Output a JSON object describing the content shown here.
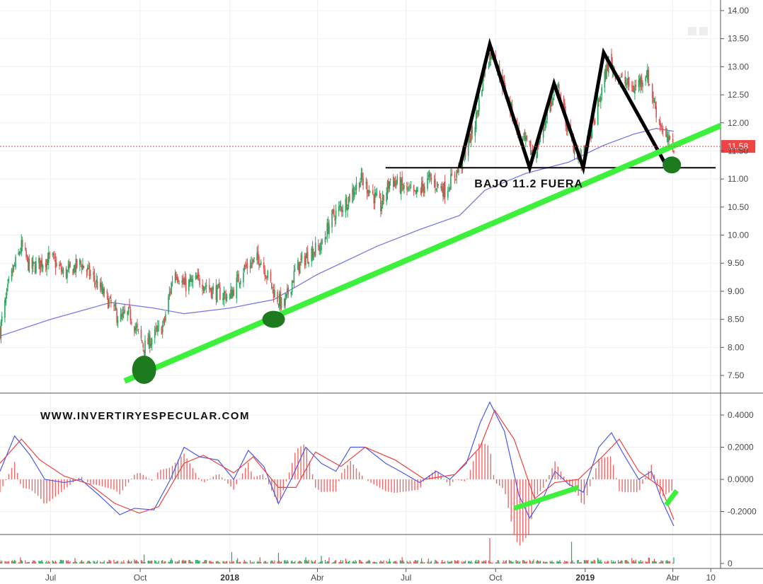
{
  "chart_data": [
    {
      "type": "candlestick",
      "panel": "price",
      "title": "",
      "xlabel": "",
      "ylabel": "",
      "ylim": [
        7.2,
        14.1
      ],
      "y_ticks": [
        "14.00",
        "13.50",
        "13.00",
        "12.50",
        "12.00",
        "11.50",
        "11.00",
        "10.50",
        "10.00",
        "9.50",
        "9.00",
        "8.50",
        "8.00",
        "7.50"
      ],
      "x_ticks": [
        {
          "label": "Jul",
          "date": "2017-07-01",
          "bold": false
        },
        {
          "label": "Oct",
          "date": "2017-10-01",
          "bold": false
        },
        {
          "label": "2018",
          "date": "2018-01-01",
          "bold": true
        },
        {
          "label": "Abr",
          "date": "2018-04-01",
          "bold": false
        },
        {
          "label": "Jul",
          "date": "2018-07-01",
          "bold": false
        },
        {
          "label": "Oct",
          "date": "2018-10-01",
          "bold": false
        },
        {
          "label": "2019",
          "date": "2019-01-01",
          "bold": true
        },
        {
          "label": "Abr",
          "date": "2019-04-01",
          "bold": false
        },
        {
          "label": "10",
          "date": "2019-05-10",
          "bold": false
        }
      ],
      "date_range": [
        "2017-05-10",
        "2019-05-20"
      ],
      "last_price": {
        "label": "11.58",
        "value": 11.58,
        "color": "#ef4444"
      },
      "close_path": [
        [
          "2017-05-10",
          8.3
        ],
        [
          "2017-05-20",
          9.2
        ],
        [
          "2017-06-01",
          9.8
        ],
        [
          "2017-06-10",
          9.4
        ],
        [
          "2017-06-20",
          9.5
        ],
        [
          "2017-07-01",
          9.6
        ],
        [
          "2017-07-15",
          9.3
        ],
        [
          "2017-08-01",
          9.5
        ],
        [
          "2017-08-15",
          9.2
        ],
        [
          "2017-08-30",
          8.8
        ],
        [
          "2017-09-10",
          8.5
        ],
        [
          "2017-09-20",
          8.6
        ],
        [
          "2017-10-05",
          8.0
        ],
        [
          "2017-10-15",
          8.2
        ],
        [
          "2017-10-25",
          8.4
        ],
        [
          "2017-11-05",
          9.4
        ],
        [
          "2017-11-15",
          9.1
        ],
        [
          "2017-12-01",
          9.2
        ],
        [
          "2017-12-15",
          9.0
        ],
        [
          "2018-01-01",
          8.9
        ],
        [
          "2018-01-15",
          9.4
        ],
        [
          "2018-02-01",
          9.6
        ],
        [
          "2018-02-15",
          9.0
        ],
        [
          "2018-02-25",
          8.7
        ],
        [
          "2018-03-10",
          9.4
        ],
        [
          "2018-03-25",
          9.7
        ],
        [
          "2018-04-05",
          9.8
        ],
        [
          "2018-04-15",
          10.3
        ],
        [
          "2018-05-01",
          10.6
        ],
        [
          "2018-05-15",
          11.0
        ],
        [
          "2018-05-25",
          10.8
        ],
        [
          "2018-06-05",
          10.5
        ],
        [
          "2018-06-15",
          11.0
        ],
        [
          "2018-07-01",
          10.8
        ],
        [
          "2018-07-10",
          10.7
        ],
        [
          "2018-07-25",
          11.0
        ],
        [
          "2018-08-10",
          10.8
        ],
        [
          "2018-08-25",
          11.2
        ],
        [
          "2018-09-10",
          12.0
        ],
        [
          "2018-09-20",
          13.0
        ],
        [
          "2018-09-28",
          13.3
        ],
        [
          "2018-10-10",
          12.6
        ],
        [
          "2018-10-25",
          11.8
        ],
        [
          "2018-11-10",
          11.4
        ],
        [
          "2018-11-25",
          12.3
        ],
        [
          "2018-12-05",
          12.6
        ],
        [
          "2018-12-15",
          11.8
        ],
        [
          "2018-12-28",
          11.3
        ],
        [
          "2019-01-10",
          12.0
        ],
        [
          "2019-01-25",
          13.1
        ],
        [
          "2019-02-05",
          12.8
        ],
        [
          "2019-02-20",
          12.6
        ],
        [
          "2019-03-05",
          12.9
        ],
        [
          "2019-03-15",
          12.2
        ],
        [
          "2019-03-25",
          11.7
        ],
        [
          "2019-04-02",
          11.58
        ]
      ],
      "moving_average": [
        [
          "2017-05-10",
          8.2
        ],
        [
          "2017-07-01",
          8.5
        ],
        [
          "2017-09-01",
          8.8
        ],
        [
          "2017-10-15",
          8.7
        ],
        [
          "2017-11-15",
          8.6
        ],
        [
          "2018-01-01",
          8.7
        ],
        [
          "2018-02-15",
          8.85
        ],
        [
          "2018-04-01",
          9.3
        ],
        [
          "2018-06-01",
          9.8
        ],
        [
          "2018-07-15",
          10.1
        ],
        [
          "2018-08-25",
          10.35
        ],
        [
          "2018-09-20",
          10.8
        ],
        [
          "2018-11-01",
          11.1
        ],
        [
          "2018-12-15",
          11.3
        ],
        [
          "2019-01-20",
          11.6
        ],
        [
          "2019-02-20",
          11.8
        ],
        [
          "2019-03-15",
          11.9
        ],
        [
          "2019-04-02",
          11.85
        ]
      ],
      "pattern_line": [
        [
          "2018-08-25",
          11.2
        ],
        [
          "2018-09-25",
          13.4
        ],
        [
          "2018-11-05",
          11.2
        ],
        [
          "2018-11-30",
          12.7
        ],
        [
          "2018-12-30",
          11.2
        ],
        [
          "2019-01-20",
          13.25
        ],
        [
          "2019-03-25",
          11.25
        ]
      ],
      "support_line": {
        "y": 11.2,
        "from": "2018-06-10",
        "to": "2019-05-15"
      },
      "trend_line": {
        "from": [
          "2017-09-15",
          7.4
        ],
        "to": [
          "2019-05-20",
          11.95
        ]
      },
      "touch_points": [
        [
          "2017-10-05",
          7.6
        ],
        [
          "2018-02-15",
          8.5
        ],
        [
          "2019-03-31",
          11.25
        ]
      ],
      "annotation": {
        "text": "BAJO  11.2 FUERA",
        "date": "2018-12-20",
        "y": 11.05
      },
      "colors": {
        "up": "#26a65b",
        "down": "#e05050",
        "ma": "#7a7ae6",
        "trend": "#3cf03c",
        "pattern": "#000000",
        "touch": "#1e7a1e"
      }
    },
    {
      "type": "macd",
      "panel": "macd",
      "ylim": [
        -0.31,
        0.5
      ],
      "y_ticks": [
        "0.4000",
        "0.2000",
        "0.0000",
        "-0.2000"
      ],
      "watermark": "WWW.INVERTIRYESPECULAR.COM",
      "macd_path": [
        [
          "2017-05-10",
          0.05
        ],
        [
          "2017-05-25",
          0.27
        ],
        [
          "2017-06-10",
          0.15
        ],
        [
          "2017-06-25",
          0.0
        ],
        [
          "2017-07-15",
          -0.02
        ],
        [
          "2017-08-01",
          0.0
        ],
        [
          "2017-08-20",
          -0.1
        ],
        [
          "2017-09-10",
          -0.22
        ],
        [
          "2017-09-25",
          -0.18
        ],
        [
          "2017-10-15",
          -0.19
        ],
        [
          "2017-11-01",
          0.0
        ],
        [
          "2017-11-15",
          0.2
        ],
        [
          "2017-12-01",
          0.14
        ],
        [
          "2017-12-20",
          0.12
        ],
        [
          "2018-01-05",
          0.0
        ],
        [
          "2018-01-20",
          0.18
        ],
        [
          "2018-02-05",
          0.08
        ],
        [
          "2018-02-20",
          -0.15
        ],
        [
          "2018-03-05",
          0.0
        ],
        [
          "2018-03-20",
          0.2
        ],
        [
          "2018-04-05",
          0.1
        ],
        [
          "2018-04-20",
          0.05
        ],
        [
          "2018-05-05",
          0.2
        ],
        [
          "2018-05-20",
          0.2
        ],
        [
          "2018-06-10",
          0.1
        ],
        [
          "2018-06-25",
          0.05
        ],
        [
          "2018-07-15",
          -0.02
        ],
        [
          "2018-08-01",
          0.05
        ],
        [
          "2018-08-15",
          0.0
        ],
        [
          "2018-09-01",
          0.1
        ],
        [
          "2018-09-15",
          0.35
        ],
        [
          "2018-09-25",
          0.48
        ],
        [
          "2018-10-10",
          0.3
        ],
        [
          "2018-10-25",
          -0.1
        ],
        [
          "2018-11-05",
          -0.24
        ],
        [
          "2018-11-20",
          -0.1
        ],
        [
          "2018-12-01",
          0.05
        ],
        [
          "2018-12-15",
          -0.03
        ],
        [
          "2018-12-30",
          -0.08
        ],
        [
          "2019-01-15",
          0.2
        ],
        [
          "2019-01-28",
          0.29
        ],
        [
          "2019-02-10",
          0.15
        ],
        [
          "2019-02-25",
          0.0
        ],
        [
          "2019-03-10",
          0.05
        ],
        [
          "2019-03-20",
          -0.12
        ],
        [
          "2019-04-02",
          -0.29
        ]
      ],
      "signal_path": [
        [
          "2017-05-10",
          0.1
        ],
        [
          "2017-06-01",
          0.25
        ],
        [
          "2017-06-20",
          0.12
        ],
        [
          "2017-07-15",
          0.02
        ],
        [
          "2017-08-10",
          -0.03
        ],
        [
          "2017-09-05",
          -0.15
        ],
        [
          "2017-09-30",
          -0.21
        ],
        [
          "2017-10-20",
          -0.17
        ],
        [
          "2017-11-15",
          0.1
        ],
        [
          "2017-12-05",
          0.15
        ],
        [
          "2018-01-05",
          0.04
        ],
        [
          "2018-01-25",
          0.14
        ],
        [
          "2018-02-20",
          -0.05
        ],
        [
          "2018-03-10",
          -0.05
        ],
        [
          "2018-03-30",
          0.17
        ],
        [
          "2018-04-25",
          0.08
        ],
        [
          "2018-05-20",
          0.2
        ],
        [
          "2018-06-20",
          0.12
        ],
        [
          "2018-07-20",
          0.0
        ],
        [
          "2018-08-20",
          0.03
        ],
        [
          "2018-09-15",
          0.2
        ],
        [
          "2018-09-30",
          0.43
        ],
        [
          "2018-10-20",
          0.25
        ],
        [
          "2018-11-10",
          -0.12
        ],
        [
          "2018-12-01",
          -0.02
        ],
        [
          "2018-12-25",
          0.0
        ],
        [
          "2019-01-20",
          0.15
        ],
        [
          "2019-02-05",
          0.25
        ],
        [
          "2019-02-25",
          0.05
        ],
        [
          "2019-03-20",
          -0.05
        ],
        [
          "2019-04-02",
          -0.25
        ]
      ],
      "divergence_lines": [
        {
          "from": [
            "2018-10-20",
            -0.18
          ],
          "to": [
            "2018-12-25",
            -0.05
          ]
        },
        {
          "from": [
            "2019-03-25",
            -0.16
          ],
          "to": [
            "2019-04-05",
            -0.07
          ]
        }
      ],
      "colors": {
        "macd": "#4a5ae8",
        "signal": "#ee4040",
        "hist": "#ee6a6a",
        "trend": "#3cf03c"
      }
    },
    {
      "type": "bar",
      "panel": "volume",
      "y_ticks": [
        "0"
      ],
      "spikes": [
        [
          "2017-10-05",
          0.35
        ],
        [
          "2018-01-03",
          0.45
        ],
        [
          "2018-02-20",
          0.42
        ],
        [
          "2018-04-05",
          0.3
        ],
        [
          "2018-09-25",
          1.0
        ],
        [
          "2018-12-18",
          0.85
        ]
      ],
      "colors": {
        "up": "#26a65b",
        "down": "#e05050"
      }
    }
  ]
}
